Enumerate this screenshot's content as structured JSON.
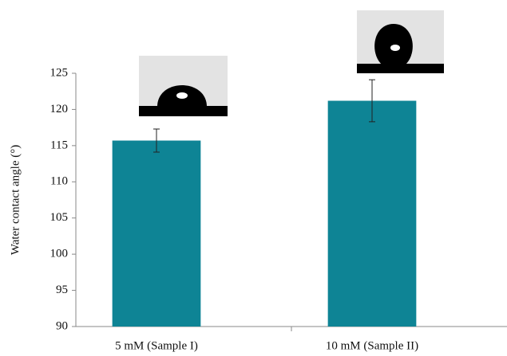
{
  "chart_data": {
    "type": "bar",
    "y_label": "Water contact angle (°)",
    "categories": [
      "5 mM (Sample I)",
      "10 mM (Sample II)"
    ],
    "values": [
      115.7,
      121.2
    ],
    "errors": [
      1.6,
      2.9
    ],
    "color": "#0e8495",
    "ylim": [
      90,
      125
    ],
    "yticks": [
      90,
      95,
      100,
      105,
      110,
      115,
      120,
      125
    ],
    "grid": false
  }
}
